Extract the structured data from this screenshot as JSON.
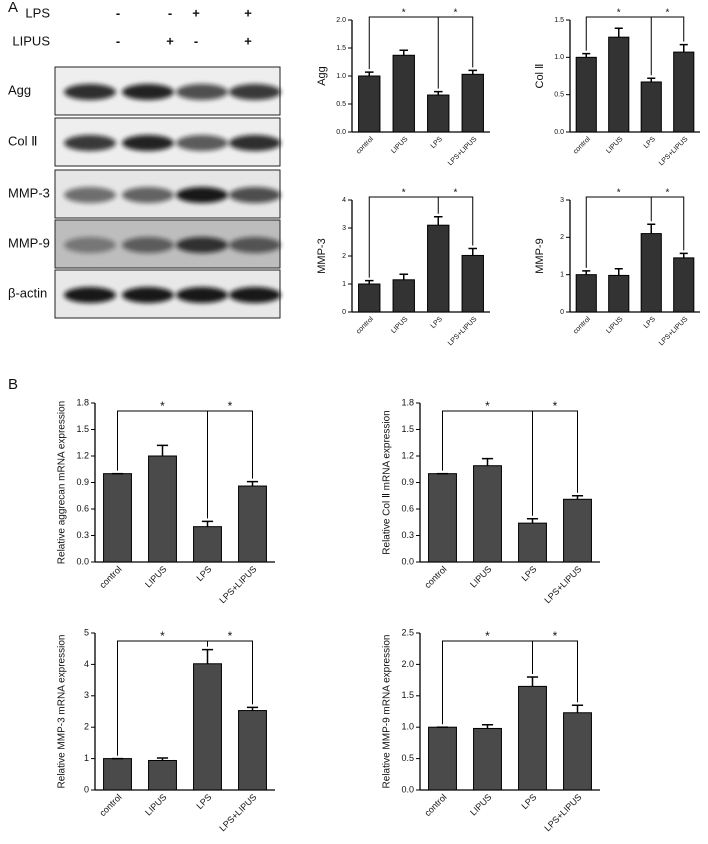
{
  "panels": [
    "A",
    "B"
  ],
  "blot": {
    "treatments": [
      {
        "name": "LPS",
        "signs": [
          "-",
          "-",
          "+",
          "+"
        ]
      },
      {
        "name": "LIPUS",
        "signs": [
          "-",
          "+",
          "-",
          "+"
        ]
      }
    ],
    "rows": [
      "Agg",
      "Col Ⅱ",
      "MMP-3",
      "MMP-9",
      "β-actin"
    ]
  },
  "chart_data": [
    {
      "type": "bar",
      "y_label": "Agg",
      "categories": [
        "control",
        "LIPUS",
        "LPS",
        "LPS+LIPUS"
      ],
      "values": [
        1.0,
        1.37,
        0.66,
        1.03
      ],
      "errors": [
        0.07,
        0.09,
        0.06,
        0.07
      ],
      "color": "#333333",
      "ylim": [
        0,
        2
      ],
      "yticks": [
        {
          "value": 0,
          "label": "0.0"
        },
        {
          "value": 0.5,
          "label": "0.5"
        },
        {
          "value": 1,
          "label": "1.0"
        },
        {
          "value": 1.5,
          "label": "1.5"
        },
        {
          "value": 2,
          "label": "2.0"
        }
      ],
      "significance": [
        "*",
        "*"
      ]
    },
    {
      "type": "bar",
      "y_label": "Col Ⅱ",
      "categories": [
        "control",
        "LIPUS",
        "LPS",
        "LPS+LIPUS"
      ],
      "values": [
        1.0,
        1.27,
        0.67,
        1.07
      ],
      "errors": [
        0.05,
        0.12,
        0.05,
        0.1
      ],
      "color": "#333333",
      "ylim": [
        0,
        1.5
      ],
      "yticks": [
        {
          "value": 0,
          "label": "0.0"
        },
        {
          "value": 0.5,
          "label": "0.5"
        },
        {
          "value": 1,
          "label": "1.0"
        },
        {
          "value": 1.5,
          "label": "1.5"
        }
      ],
      "significance": [
        "*",
        "*"
      ]
    },
    {
      "type": "bar",
      "y_label": "MMP-3",
      "categories": [
        "control",
        "LIPUS",
        "LPS",
        "LPS+LIPUS"
      ],
      "values": [
        1.0,
        1.15,
        3.1,
        2.02
      ],
      "errors": [
        0.12,
        0.2,
        0.3,
        0.25
      ],
      "color": "#333333",
      "ylim": [
        0,
        4
      ],
      "yticks": [
        0,
        1,
        2,
        3,
        4
      ],
      "significance": [
        "*",
        "*"
      ]
    },
    {
      "type": "bar",
      "y_label": "MMP-9",
      "categories": [
        "control",
        "LIPUS",
        "LPS",
        "LPS+LIPUS"
      ],
      "values": [
        1.0,
        0.98,
        2.1,
        1.45
      ],
      "errors": [
        0.1,
        0.18,
        0.25,
        0.12
      ],
      "color": "#333333",
      "ylim": [
        0,
        3
      ],
      "yticks": [
        0,
        1,
        2,
        3
      ],
      "significance": [
        "*",
        "*"
      ]
    },
    {
      "type": "bar",
      "y_label": "Relative aggrecan mRNA expression",
      "categories": [
        "control",
        "LIPUS",
        "LPS",
        "LPS+LIPUS"
      ],
      "values": [
        1.0,
        1.2,
        0.4,
        0.86
      ],
      "errors": [
        0,
        0.12,
        0.06,
        0.05
      ],
      "color": "#4a4a4a",
      "ylim": [
        0,
        1.8
      ],
      "yticks": [
        {
          "value": 0,
          "label": "0.0"
        },
        {
          "value": 0.3,
          "label": "0.3"
        },
        {
          "value": 0.6,
          "label": "0.6"
        },
        {
          "value": 0.9,
          "label": "0.9"
        },
        {
          "value": 1.2,
          "label": "1.2"
        },
        {
          "value": 1.5,
          "label": "1.5"
        },
        {
          "value": 1.8,
          "label": "1.8"
        }
      ],
      "significance": [
        "*",
        "*"
      ]
    },
    {
      "type": "bar",
      "y_label": "Relative Col Ⅱ mRNA expression",
      "categories": [
        "control",
        "LIPUS",
        "LPS",
        "LPS+LIPUS"
      ],
      "values": [
        1.0,
        1.09,
        0.44,
        0.71
      ],
      "errors": [
        0,
        0.08,
        0.05,
        0.04
      ],
      "color": "#4a4a4a",
      "ylim": [
        0,
        1.8
      ],
      "yticks": [
        {
          "value": 0,
          "label": "0.0"
        },
        {
          "value": 0.3,
          "label": "0.3"
        },
        {
          "value": 0.6,
          "label": "0.6"
        },
        {
          "value": 0.9,
          "label": "0.9"
        },
        {
          "value": 1.2,
          "label": "1.2"
        },
        {
          "value": 1.5,
          "label": "1.5"
        },
        {
          "value": 1.8,
          "label": "1.8"
        }
      ],
      "significance": [
        "*",
        "*"
      ]
    },
    {
      "type": "bar",
      "y_label": "Relative MMP-3 mRNA expression",
      "categories": [
        "control",
        "LIPUS",
        "LPS",
        "LPS+LIPUS"
      ],
      "values": [
        1.0,
        0.94,
        4.02,
        2.53
      ],
      "errors": [
        0,
        0.08,
        0.45,
        0.1
      ],
      "color": "#4a4a4a",
      "ylim": [
        0,
        5
      ],
      "yticks": [
        0,
        1,
        2,
        3,
        4,
        5
      ],
      "significance": [
        "*",
        "*"
      ]
    },
    {
      "type": "bar",
      "y_label": "Relative MMP-9 mRNA expression",
      "categories": [
        "control",
        "LIPUS",
        "LPS",
        "LPS+LIPUS"
      ],
      "values": [
        1.0,
        0.98,
        1.65,
        1.23
      ],
      "errors": [
        0,
        0.06,
        0.15,
        0.12
      ],
      "color": "#4a4a4a",
      "ylim": [
        0,
        2.5
      ],
      "yticks": [
        {
          "value": 0,
          "label": "0.0"
        },
        {
          "value": 0.5,
          "label": "0.5"
        },
        {
          "value": 1,
          "label": "1.0"
        },
        {
          "value": 1.5,
          "label": "1.5"
        },
        {
          "value": 2,
          "label": "2.0"
        },
        {
          "value": 2.5,
          "label": "2.5"
        }
      ],
      "significance": [
        "*",
        "*"
      ]
    }
  ]
}
